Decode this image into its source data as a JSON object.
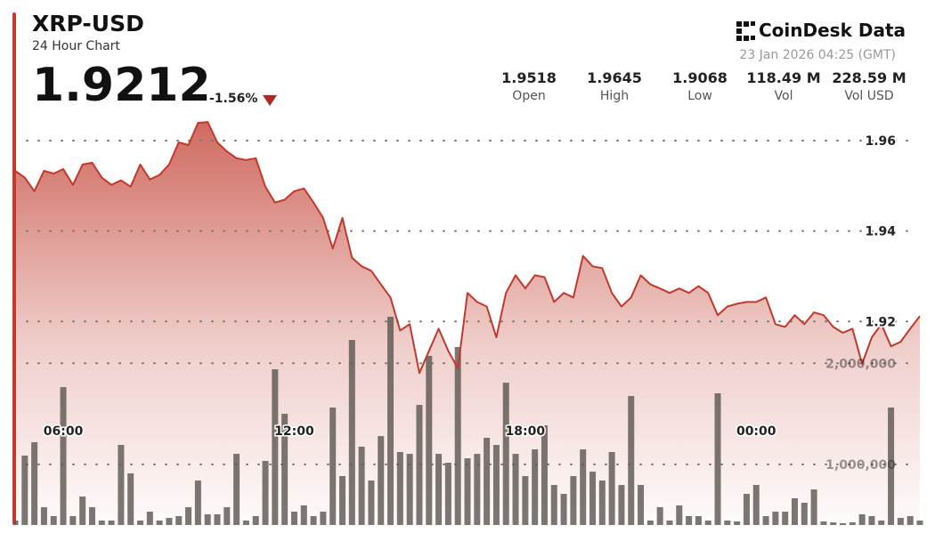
{
  "header": {
    "symbol": "XRP-USD",
    "subtitle": "24 Hour Chart",
    "price": "1.9212",
    "change": "-1.56%",
    "brand": "CoinDesk Data",
    "timestamp": "23 Jan 2026 04:25 (GMT)",
    "stats": [
      {
        "value": "1.9518",
        "label": "Open"
      },
      {
        "value": "1.9645",
        "label": "High"
      },
      {
        "value": "1.9068",
        "label": "Low"
      },
      {
        "value": "118.49 M",
        "label": "Vol"
      },
      {
        "value": "228.59 M",
        "label": "Vol USD"
      }
    ]
  },
  "chart_data": {
    "type": "line",
    "categories": [
      null,
      null,
      null,
      null,
      null,
      "06:00",
      null,
      null,
      null,
      null,
      null,
      null,
      null,
      null,
      null,
      null,
      null,
      null,
      null,
      null,
      null,
      null,
      null,
      null,
      null,
      null,
      null,
      null,
      null,
      "12:00",
      null,
      null,
      null,
      null,
      null,
      null,
      null,
      null,
      null,
      null,
      null,
      null,
      null,
      null,
      null,
      null,
      null,
      null,
      null,
      null,
      null,
      null,
      null,
      "18:00",
      null,
      null,
      null,
      null,
      null,
      null,
      null,
      null,
      null,
      null,
      null,
      null,
      null,
      null,
      null,
      null,
      null,
      null,
      null,
      null,
      null,
      null,
      null,
      "00:00",
      null,
      null,
      null,
      null,
      null,
      null,
      null,
      null,
      null,
      null,
      null,
      null,
      null,
      null,
      null,
      null,
      null
    ],
    "series": [
      {
        "color": "#c0392b",
        "values": [
          1.9533,
          1.9518,
          1.9488,
          1.9533,
          1.9527,
          1.9537,
          1.9502,
          1.9547,
          1.9551,
          1.9518,
          1.9502,
          1.9512,
          1.9498,
          1.9547,
          1.9514,
          1.9524,
          1.9547,
          1.9596,
          1.959,
          1.9639,
          1.9641,
          1.9596,
          1.9576,
          1.9561,
          1.9557,
          1.9561,
          1.9498,
          1.9463,
          1.9469,
          1.9488,
          1.9494,
          1.9463,
          1.9429,
          1.9361,
          1.9429,
          1.9341,
          1.9322,
          1.9312,
          1.9282,
          1.9253,
          1.918,
          1.9194,
          1.9086,
          1.9135,
          1.9184,
          1.9135,
          1.9096,
          1.9263,
          1.9243,
          1.9233,
          1.9165,
          1.9263,
          1.9302,
          1.9273,
          1.9302,
          1.9298,
          1.9243,
          1.9263,
          1.9253,
          1.9345,
          1.9322,
          1.9318,
          1.9263,
          1.9233,
          1.9253,
          1.9302,
          1.9282,
          1.9273,
          1.9263,
          1.9273,
          1.9263,
          1.9278,
          1.9263,
          1.9214,
          1.9233,
          1.9239,
          1.9243,
          1.9243,
          1.9253,
          1.9194,
          1.9188,
          1.9214,
          1.9194,
          1.922,
          1.9214,
          1.9188,
          1.9175,
          1.9184,
          1.9106,
          1.9165,
          1.9194,
          1.9145,
          1.9155,
          1.9184,
          1.9212
        ]
      },
      {
        "type": "bar",
        "axis": "y2",
        "color": "#5a5550",
        "values": [
          444000,
          1087000,
          1219000,
          576000,
          488000,
          1764000,
          488000,
          682000,
          576000,
          444000,
          444000,
          1192000,
          911000,
          444000,
          532000,
          444000,
          470000,
          488000,
          576000,
          840000,
          506000,
          506000,
          576000,
          1104000,
          444000,
          488000,
          1034000,
          1941000,
          1500000,
          532000,
          594000,
          488000,
          532000,
          1562000,
          884000,
          2231000,
          1175000,
          840000,
          1280000,
          2460000,
          1122000,
          1104000,
          1588000,
          2073000,
          1104000,
          1016000,
          2161000,
          1060000,
          1104000,
          1263000,
          1192000,
          1808000,
          1104000,
          884000,
          1148000,
          1386000,
          796000,
          708000,
          884000,
          1148000,
          928000,
          840000,
          1122000,
          796000,
          1676000,
          796000,
          444000,
          576000,
          444000,
          594000,
          488000,
          488000,
          444000,
          1703000,
          444000,
          435000,
          708000,
          796000,
          488000,
          532000,
          532000,
          664000,
          620000,
          752000,
          435000,
          426000,
          418000,
          426000,
          506000,
          488000,
          444000,
          1562000,
          470000,
          488000,
          444000
        ]
      }
    ],
    "ylim": [
      1.875,
      1.9655
    ],
    "yticks": [
      1.92,
      1.94,
      1.96
    ],
    "y2lim": [
      400000,
      4450000
    ],
    "y2ticks": [
      {
        "value": 1000000,
        "label": "1,000,000"
      },
      {
        "value": 2000000,
        "label": "2,000,000"
      }
    ],
    "grid": true
  }
}
